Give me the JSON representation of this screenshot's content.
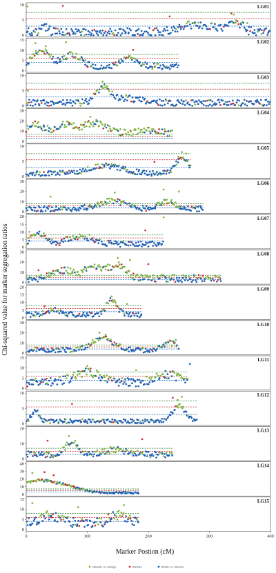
{
  "chart_data": {
    "type": "scatter",
    "xlabel": "Marker Postion (cM)",
    "ylabel": "Chi-squared value for marker segregation ratios",
    "x_ticks": [
      0,
      100,
      200,
      300,
      400
    ],
    "xlim": [
      0,
      400
    ],
    "grid": false,
    "legend_position": "bottom",
    "legend": [
      {
        "name": "<abxcd> or <efxeg>",
        "color": "#7cb342"
      },
      {
        "name": "<hkxhk>",
        "color": "#d32f2f"
      },
      {
        "name": "<lmxll> or <nnxnp>",
        "color": "#1e5fb4"
      }
    ],
    "threshold_colors": [
      "#2e7d32",
      "#c62828",
      "#1565c0"
    ],
    "panels": [
      {
        "label": "LG01",
        "length": 400,
        "yticks": [
          0,
          5,
          10
        ],
        "ylim": [
          0,
          10
        ],
        "thresholds": [
          7.5,
          5.5,
          3.0
        ],
        "base": 1.0,
        "spread": 2.0,
        "bumps": [
          [
            30,
            8,
            2.0
          ],
          [
            280,
            40,
            2.5
          ],
          [
            345,
            15,
            3.0
          ]
        ],
        "outliers": [
          [
            2,
            9.5,
            "g"
          ],
          [
            60,
            9.7,
            "r"
          ],
          [
            235,
            6.2,
            "r"
          ],
          [
            336,
            7.2,
            "r"
          ],
          [
            340,
            6.8,
            "g"
          ],
          [
            362,
            4.0,
            "g"
          ]
        ]
      },
      {
        "label": "LG02",
        "length": 250,
        "yticks": [
          0,
          5,
          10,
          15
        ],
        "ylim": [
          0,
          15
        ],
        "thresholds": [
          8.0,
          6.0,
          4.0
        ],
        "base": 2.0,
        "spread": 2.0,
        "bumps": [
          [
            25,
            20,
            8.0
          ],
          [
            75,
            20,
            6.0
          ],
          [
            170,
            20,
            4.0
          ]
        ],
        "outliers": [
          [
            15,
            13.5,
            "g"
          ],
          [
            32,
            12.0,
            "g"
          ],
          [
            65,
            14.0,
            "g"
          ],
          [
            175,
            10.2,
            "r"
          ]
        ]
      },
      {
        "label": "LG03",
        "length": 400,
        "yticks": [
          0,
          5,
          10
        ],
        "ylim": [
          0,
          10
        ],
        "thresholds": [
          7.5,
          5.5,
          3.0
        ],
        "base": 1.0,
        "spread": 1.5,
        "bumps": [
          [
            125,
            15,
            4.5
          ],
          [
            160,
            40,
            1.5
          ]
        ],
        "outliers": [
          [
            3,
            5.0,
            "g"
          ],
          [
            125,
            8.0,
            "g"
          ],
          [
            128,
            6.8,
            "g"
          ]
        ]
      },
      {
        "label": "LG04",
        "length": 240,
        "yticks": [
          0,
          10,
          20,
          30
        ],
        "ylim": [
          0,
          30
        ],
        "thresholds": [
          7.0,
          5.0,
          3.0
        ],
        "base": 6.0,
        "spread": 5.0,
        "bumps": [
          [
            15,
            20,
            10.0
          ],
          [
            60,
            20,
            10.0
          ],
          [
            110,
            30,
            12.0
          ],
          [
            200,
            40,
            4.0
          ]
        ],
        "outliers": [
          [
            105,
            24.0,
            "g"
          ],
          [
            115,
            21.0,
            "g"
          ],
          [
            20,
            19.0,
            "g"
          ]
        ]
      },
      {
        "label": "LG05",
        "length": 270,
        "yticks": [
          0,
          5,
          10
        ],
        "ylim": [
          0,
          10
        ],
        "thresholds": [
          7.5,
          5.5,
          3.0
        ],
        "base": 1.0,
        "spread": 1.2,
        "bumps": [
          [
            130,
            40,
            2.5
          ],
          [
            255,
            15,
            5.0
          ]
        ],
        "outliers": [
          [
            210,
            4.8,
            "r"
          ],
          [
            255,
            8.0,
            "g"
          ],
          [
            262,
            7.5,
            "g"
          ],
          [
            249,
            6.5,
            "g"
          ]
        ]
      },
      {
        "label": "LG06",
        "length": 290,
        "yticks": [
          0,
          10,
          20,
          30
        ],
        "ylim": [
          0,
          30
        ],
        "thresholds": [
          8.0,
          6.0,
          4.0
        ],
        "base": 3.0,
        "spread": 4.0,
        "bumps": [
          [
            140,
            30,
            8.0
          ],
          [
            230,
            20,
            7.0
          ]
        ],
        "outliers": [
          [
            145,
            19.0,
            "g"
          ],
          [
            225,
            22.0,
            "g"
          ],
          [
            250,
            20.0,
            "g"
          ],
          [
            40,
            15.0,
            "g"
          ]
        ]
      },
      {
        "label": "LG07",
        "length": 225,
        "yticks": [
          0,
          5,
          10,
          15,
          20
        ],
        "ylim": [
          0,
          20
        ],
        "thresholds": [
          8.0,
          6.0,
          4.0
        ],
        "base": 2.0,
        "spread": 3.0,
        "bumps": [
          [
            20,
            15,
            7.0
          ],
          [
            90,
            30,
            5.0
          ]
        ],
        "outliers": [
          [
            5,
            10.0,
            "g"
          ],
          [
            135,
            4.0,
            "r"
          ],
          [
            195,
            11.0,
            "r"
          ],
          [
            225,
            19.5,
            "g"
          ]
        ]
      },
      {
        "label": "LG08",
        "length": 320,
        "yticks": [
          0,
          10,
          20,
          30
        ],
        "ylim": [
          0,
          30
        ],
        "thresholds": [
          7.0,
          5.0,
          3.0
        ],
        "base": 4.0,
        "spread": 5.0,
        "bumps": [
          [
            60,
            20,
            8.0
          ],
          [
            110,
            25,
            10.0
          ],
          [
            150,
            20,
            12.0
          ]
        ],
        "outliers": [
          [
            20,
            12.0,
            "r"
          ],
          [
            150,
            24.0,
            "g"
          ],
          [
            170,
            22.0,
            "g"
          ],
          [
            200,
            18.0,
            "r"
          ]
        ]
      },
      {
        "label": "LG09",
        "length": 190,
        "yticks": [
          0,
          5,
          10,
          15,
          20
        ],
        "ylim": [
          0,
          20
        ],
        "thresholds": [
          8.0,
          6.0,
          4.0
        ],
        "base": 2.0,
        "spread": 2.5,
        "bumps": [
          [
            140,
            12,
            10.0
          ],
          [
            45,
            15,
            3.0
          ]
        ],
        "outliers": [
          [
            140,
            14.0,
            "g"
          ],
          [
            145,
            11.0,
            "g"
          ],
          [
            30,
            7.5,
            "r"
          ],
          [
            165,
            9.0,
            "g"
          ]
        ]
      },
      {
        "label": "LG10",
        "length": 250,
        "yticks": [
          0,
          10,
          20,
          30
        ],
        "ylim": [
          0,
          30
        ],
        "thresholds": [
          8.0,
          6.0,
          4.0
        ],
        "base": 3.0,
        "spread": 3.5,
        "bumps": [
          [
            125,
            25,
            12.0
          ],
          [
            235,
            15,
            7.0
          ]
        ],
        "outliers": [
          [
            120,
            20.0,
            "g"
          ],
          [
            130,
            18.0,
            "g"
          ],
          [
            245,
            13.0,
            "g"
          ]
        ]
      },
      {
        "label": "LG11",
        "length": 265,
        "yticks": [
          0,
          5,
          10,
          15
        ],
        "ylim": [
          0,
          15
        ],
        "thresholds": [
          8.0,
          6.0,
          4.0
        ],
        "base": 3.0,
        "spread": 3.0,
        "bumps": [
          [
            100,
            30,
            5.0
          ],
          [
            230,
            25,
            4.0
          ]
        ],
        "outliers": [
          [
            100,
            11.0,
            "g"
          ],
          [
            180,
            9.0,
            "g"
          ],
          [
            268,
            12.0,
            "b"
          ]
        ]
      },
      {
        "label": "LG12",
        "length": 280,
        "yticks": [
          0,
          5,
          10
        ],
        "ylim": [
          0,
          10
        ],
        "thresholds": [
          7.5,
          5.5,
          3.0
        ],
        "base": 0.8,
        "spread": 1.0,
        "bumps": [
          [
            15,
            8,
            3.5
          ],
          [
            250,
            15,
            5.0
          ]
        ],
        "outliers": [
          [
            75,
            6.5,
            "r"
          ],
          [
            240,
            8.5,
            "r"
          ],
          [
            248,
            7.8,
            "g"
          ],
          [
            255,
            8.8,
            "g"
          ]
        ]
      },
      {
        "label": "LG13",
        "length": 240,
        "yticks": [
          0,
          10,
          20
        ],
        "ylim": [
          0,
          20
        ],
        "thresholds": [
          7.0,
          5.0,
          3.0
        ],
        "base": 3.0,
        "spread": 3.0,
        "bumps": [
          [
            75,
            15,
            8.0
          ],
          [
            145,
            25,
            3.0
          ]
        ],
        "outliers": [
          [
            35,
            12.0,
            "r"
          ],
          [
            70,
            15.0,
            "g"
          ],
          [
            190,
            13.0,
            "r"
          ]
        ]
      },
      {
        "label": "LG14",
        "length": 185,
        "yticks": [
          0,
          10,
          20,
          30,
          40
        ],
        "ylim": [
          0,
          40
        ],
        "thresholds": [
          7.0,
          5.0,
          3.0
        ],
        "base": 2.0,
        "spread": 2.0,
        "bumps": [
          [
            20,
            40,
            16.0
          ],
          [
            70,
            30,
            6.0
          ]
        ],
        "outliers": [
          [
            10,
            28.0,
            "g"
          ],
          [
            30,
            29.0,
            "r"
          ],
          [
            45,
            25.0,
            "r"
          ]
        ]
      },
      {
        "label": "LG15",
        "length": 185,
        "yticks": [
          0,
          5,
          10,
          15
        ],
        "ylim": [
          0,
          15
        ],
        "thresholds": [
          8.0,
          6.0,
          4.0
        ],
        "base": 3.0,
        "spread": 3.5,
        "bumps": [
          [
            40,
            25,
            4.0
          ],
          [
            150,
            20,
            4.0
          ]
        ],
        "outliers": [
          [
            10,
            13.0,
            "g"
          ],
          [
            160,
            12.0,
            "g"
          ],
          [
            85,
            11.0,
            "g"
          ]
        ]
      }
    ]
  }
}
